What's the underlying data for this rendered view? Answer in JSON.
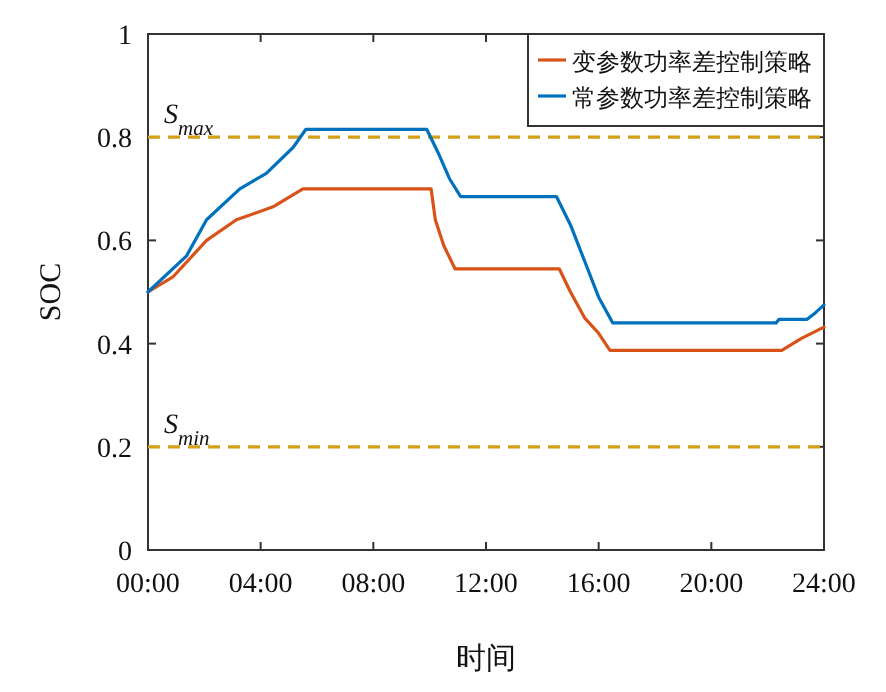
{
  "chart_data": {
    "type": "line",
    "xlabel": "时间",
    "ylabel": "SOC",
    "xlim": [
      0,
      24
    ],
    "ylim": [
      0,
      1
    ],
    "xticks": [
      {
        "value": 0,
        "label": "00:00"
      },
      {
        "value": 4,
        "label": "04:00"
      },
      {
        "value": 8,
        "label": "08:00"
      },
      {
        "value": 12,
        "label": "12:00"
      },
      {
        "value": 16,
        "label": "16:00"
      },
      {
        "value": 20,
        "label": "20:00"
      },
      {
        "value": 24,
        "label": "24:00"
      }
    ],
    "yticks": [
      0,
      0.2,
      0.4,
      0.6,
      0.8,
      1
    ],
    "legend": "top right",
    "grid": false,
    "marker": "none",
    "line_style": "solid",
    "series": [
      {
        "name": "变参数功率差控制策略",
        "color": "#d95319",
        "x": [
          0,
          0.9,
          2.08,
          3.14,
          4.44,
          5.5,
          10.05,
          10.2,
          10.5,
          10.9,
          14.6,
          15.0,
          15.5,
          16.0,
          16.4,
          22.5,
          23.2,
          24
        ],
        "values": [
          0.5,
          0.53,
          0.6,
          0.64,
          0.665,
          0.7,
          0.7,
          0.64,
          0.59,
          0.545,
          0.545,
          0.5,
          0.45,
          0.42,
          0.387,
          0.387,
          0.41,
          0.432
        ]
      },
      {
        "name": "常参数功率差控制策略",
        "color": "#0072bd",
        "x": [
          0,
          1.37,
          2.08,
          3.26,
          4.2,
          5.15,
          5.6,
          9.9,
          10.3,
          10.7,
          11.1,
          14.5,
          15.0,
          15.5,
          16.0,
          16.5,
          22.3,
          22.4,
          23.4,
          23.7,
          24
        ],
        "values": [
          0.5,
          0.57,
          0.64,
          0.7,
          0.73,
          0.78,
          0.815,
          0.815,
          0.77,
          0.72,
          0.685,
          0.685,
          0.63,
          0.56,
          0.49,
          0.44,
          0.44,
          0.447,
          0.447,
          0.46,
          0.475
        ]
      }
    ],
    "ref_lines": [
      {
        "axis": "y",
        "value": 0.8,
        "label": "S$_{max}$",
        "color": "#d4a017",
        "line_style": "dashed"
      },
      {
        "axis": "y",
        "value": 0.2,
        "label": "S$_{min}$",
        "color": "#d4a017",
        "line_style": "dashed"
      }
    ]
  }
}
